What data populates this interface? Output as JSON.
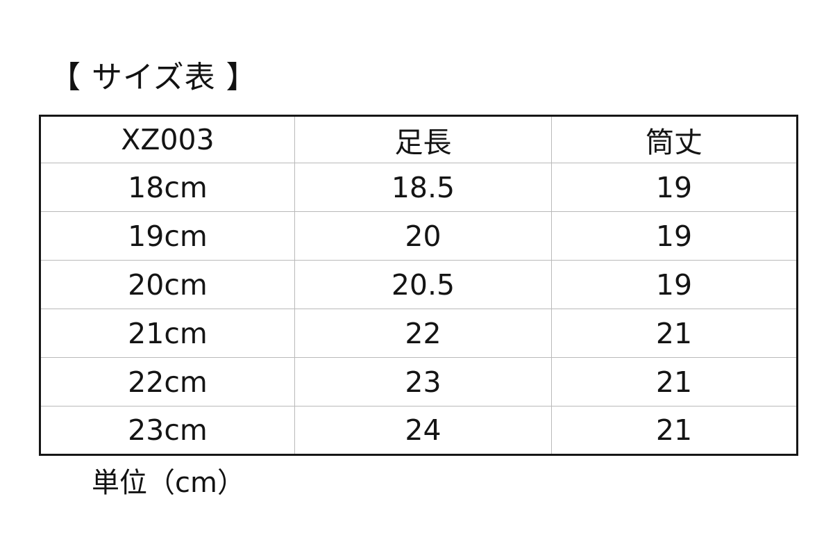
{
  "title": "【 サイズ表 】",
  "unit_note": "単位（cm）",
  "colors": {
    "background": "#ffffff",
    "text": "#141414",
    "outer_border": "#161616",
    "inner_grid": "#b9b9b9"
  },
  "table": {
    "headers": [
      "XZ003",
      "足長",
      "筒丈"
    ],
    "rows": [
      [
        "18cm",
        "18.5",
        "19"
      ],
      [
        "19cm",
        "20",
        "19"
      ],
      [
        "20cm",
        "20.5",
        "19"
      ],
      [
        "21cm",
        "22",
        "21"
      ],
      [
        "22cm",
        "23",
        "21"
      ],
      [
        "23cm",
        "24",
        "21"
      ]
    ]
  }
}
